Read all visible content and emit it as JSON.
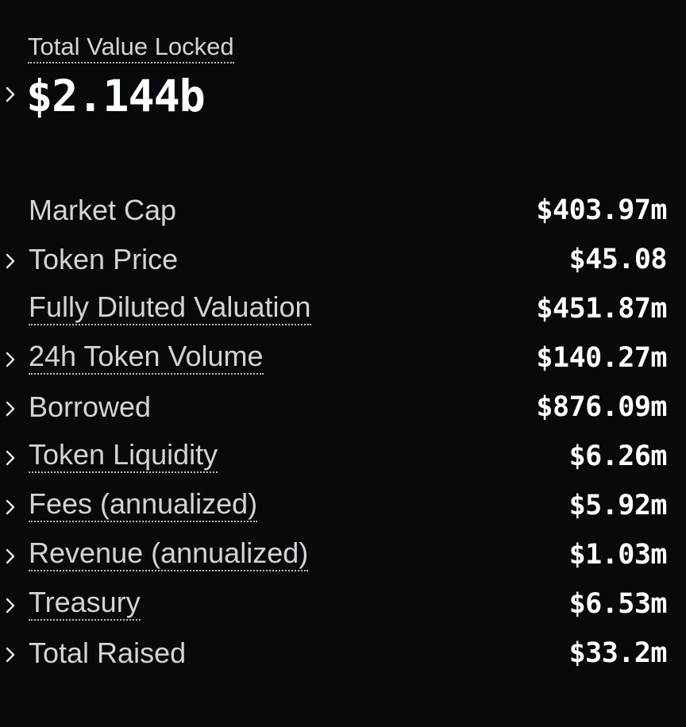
{
  "tvl": {
    "label": "Total Value Locked",
    "value": "$2.144b"
  },
  "metrics": [
    {
      "label": "Market Cap",
      "value": "$403.97m",
      "expandable": false,
      "tooltip": false
    },
    {
      "label": "Token Price",
      "value": "$45.08",
      "expandable": true,
      "tooltip": false
    },
    {
      "label": "Fully Diluted Valuation",
      "value": "$451.87m",
      "expandable": false,
      "tooltip": true
    },
    {
      "label": "24h Token Volume",
      "value": "$140.27m",
      "expandable": true,
      "tooltip": true
    },
    {
      "label": "Borrowed",
      "value": "$876.09m",
      "expandable": true,
      "tooltip": false
    },
    {
      "label": "Token Liquidity",
      "value": "$6.26m",
      "expandable": true,
      "tooltip": true
    },
    {
      "label": "Fees (annualized)",
      "value": "$5.92m",
      "expandable": true,
      "tooltip": true
    },
    {
      "label": "Revenue (annualized)",
      "value": "$1.03m",
      "expandable": true,
      "tooltip": true
    },
    {
      "label": "Treasury",
      "value": "$6.53m",
      "expandable": true,
      "tooltip": true
    },
    {
      "label": "Total Raised",
      "value": "$33.2m",
      "expandable": true,
      "tooltip": false
    }
  ],
  "icons": {
    "expand": "chevron-right-icon"
  },
  "colors": {
    "background": "#070a0c",
    "label": "#d2d5d8",
    "value": "#ffffff"
  }
}
